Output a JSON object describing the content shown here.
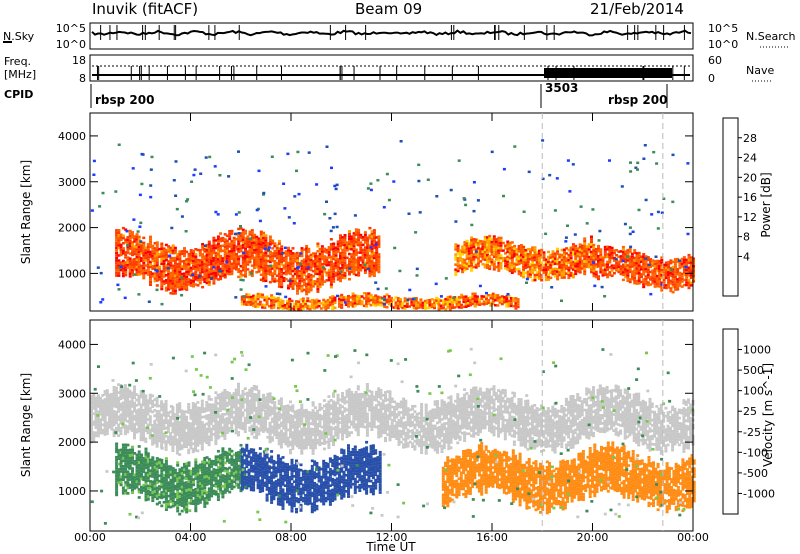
{
  "header": {
    "station": "Inuvik (fitACF)",
    "beam": "Beam 09",
    "date": "21/Feb/2014"
  },
  "strip": {
    "nsky_label": "N.Sky",
    "nsky_ticks": [
      "10^5",
      "10^0"
    ],
    "nsearch_label": "N.Search",
    "nsearch_ticks": [
      "10^5",
      "10^0"
    ],
    "freq_label": "Freq.",
    "freq_unit": "[MHz]",
    "freq_ticks": [
      "18",
      "8"
    ],
    "nave_label": "Nave",
    "nave_ticks": [
      "60",
      "0"
    ],
    "cpid_label": "CPID",
    "cpid_segments": [
      "rbsp 200",
      "3503",
      "rbsp 200"
    ]
  },
  "colors": {
    "power": [
      "#1e3cff",
      "#1e50b4",
      "#3c8c5a",
      "#78c850",
      "#ffd200",
      "#ffa000",
      "#ff6400",
      "#ff3c00",
      "#ff0000"
    ],
    "velocity": [
      "#ff0000",
      "#ff5a00",
      "#ff8c14",
      "#f5aa5a",
      "#c8c8c8",
      "#78c850",
      "#3c8c5a",
      "#2850aa",
      "#1e3cb4"
    ]
  },
  "chart_data": [
    {
      "type": "heatmap",
      "title": "",
      "xlabel": "",
      "ylabel": "Slant Range [km]",
      "xlim": [
        "00:00",
        "00:00"
      ],
      "ylim": [
        180,
        4500
      ],
      "x_ticks": [
        "00:00",
        "04:00",
        "08:00",
        "12:00",
        "16:00",
        "20:00",
        "00:00"
      ],
      "y_ticks": [
        1000,
        2000,
        3000,
        4000
      ],
      "colorbar": {
        "label": "Power [dB]",
        "ticks": [
          "28",
          "24",
          "20",
          "16",
          "12",
          "8",
          "4"
        ]
      },
      "main_echo_bands": [
        {
          "from": "01:00",
          "to": "11:30",
          "range_km": [
            700,
            1800
          ],
          "level_db": [
            20,
            28
          ]
        },
        {
          "from": "14:30",
          "to": "20:00",
          "range_km": [
            900,
            1700
          ],
          "level_db": [
            16,
            28
          ]
        },
        {
          "from": "20:00",
          "to": "24:00",
          "range_km": [
            700,
            1500
          ],
          "level_db": [
            20,
            28
          ]
        },
        {
          "from": "06:00",
          "to": "17:00",
          "range_km": [
            200,
            500
          ],
          "level_db": [
            16,
            28
          ]
        }
      ]
    },
    {
      "type": "heatmap",
      "title": "",
      "xlabel": "Time UT",
      "ylabel": "Slant Range [km]",
      "xlim": [
        "00:00",
        "00:00"
      ],
      "ylim": [
        180,
        4500
      ],
      "x_ticks": [
        "00:00",
        "04:00",
        "08:00",
        "12:00",
        "16:00",
        "20:00",
        "00:00"
      ],
      "y_ticks": [
        1000,
        2000,
        3000,
        4000
      ],
      "colorbar": {
        "label": "Velocity [m s^-1]",
        "ticks": [
          "1000",
          "500",
          "100",
          "25",
          "-25",
          "-100",
          "-500",
          "-1000"
        ]
      },
      "main_echo_bands": [
        {
          "from": "01:00",
          "to": "06:00",
          "range_km": [
            700,
            1800
          ],
          "velocity_ms": [
            25,
            500
          ]
        },
        {
          "from": "06:00",
          "to": "11:30",
          "range_km": [
            700,
            1800
          ],
          "velocity_ms": [
            500,
            1000
          ]
        },
        {
          "from": "14:00",
          "to": "24:00",
          "range_km": [
            700,
            1800
          ],
          "velocity_ms": [
            -500,
            -100
          ]
        },
        {
          "from": "00:00",
          "to": "24:00",
          "range_km": [
            1900,
            3000
          ],
          "velocity_ms": [
            -25,
            25
          ]
        }
      ]
    }
  ]
}
